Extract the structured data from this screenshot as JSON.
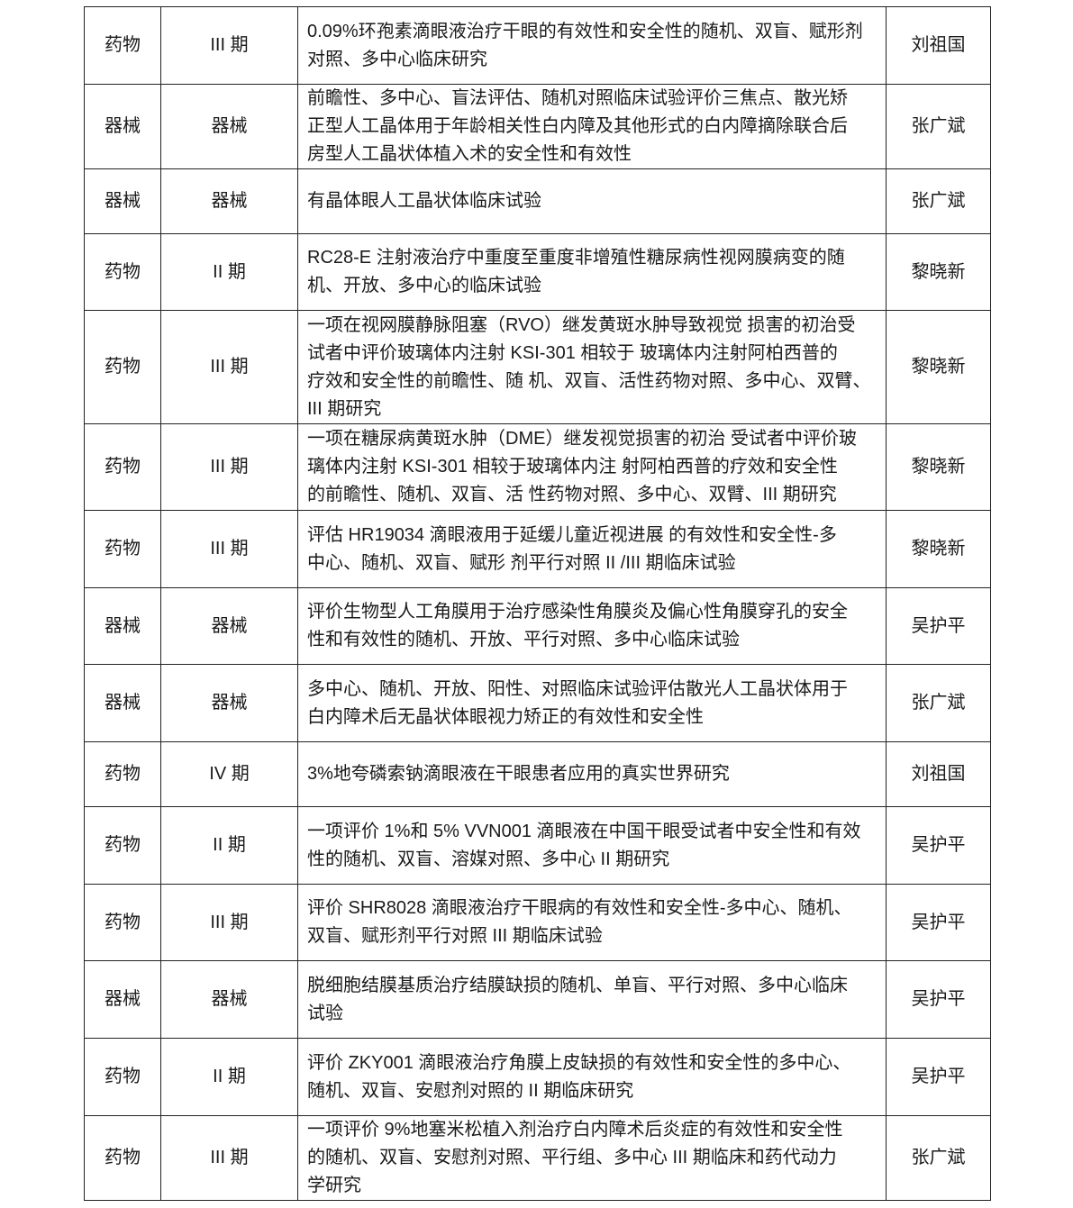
{
  "rows": [
    {
      "type": "药物",
      "phase": "III 期",
      "title": [
        "0.09%环孢素滴眼液治疗干眼的有效性和安全性的随机、双盲、赋形剂",
        "对照、多中心临床研究"
      ],
      "pi": "刘祖国"
    },
    {
      "type": "器械",
      "phase": "器械",
      "title": [
        "前瞻性、多中心、盲法评估、随机对照临床试验评价三焦点、散光矫",
        "正型人工晶体用于年龄相关性白内障及其他形式的白内障摘除联合后",
        "房型人工晶状体植入术的安全性和有效性"
      ],
      "pi": "张广斌"
    },
    {
      "type": "器械",
      "phase": "器械",
      "title": [
        "有晶体眼人工晶状体临床试验"
      ],
      "pi": "张广斌"
    },
    {
      "type": "药物",
      "phase": "II 期",
      "title": [
        "RC28-E 注射液治疗中重度至重度非增殖性糖尿病性视网膜病变的随",
        "机、开放、多中心的临床试验"
      ],
      "pi": "黎晓新"
    },
    {
      "type": "药物",
      "phase": "III 期",
      "title": [
        "一项在视网膜静脉阻塞（RVO）继发黄斑水肿导致视觉 损害的初治受",
        "试者中评价玻璃体内注射 KSI-301 相较于 玻璃体内注射阿柏西普的",
        "疗效和安全性的前瞻性、随 机、双盲、活性药物对照、多中心、双臂、",
        "III 期研究"
      ],
      "pi": "黎晓新"
    },
    {
      "type": "药物",
      "phase": "III 期",
      "title": [
        "一项在糖尿病黄斑水肿（DME）继发视觉损害的初治 受试者中评价玻",
        "璃体内注射 KSI-301 相较于玻璃体内注 射阿柏西普的疗效和安全性",
        "的前瞻性、随机、双盲、活 性药物对照、多中心、双臂、III 期研究"
      ],
      "pi": "黎晓新"
    },
    {
      "type": "药物",
      "phase": "III 期",
      "title": [
        "评估 HR19034 滴眼液用于延缓儿童近视进展 的有效性和安全性-多",
        "中心、随机、双盲、赋形 剂平行对照 II /III 期临床试验"
      ],
      "pi": "黎晓新"
    },
    {
      "type": "器械",
      "phase": "器械",
      "title": [
        "评价生物型人工角膜用于治疗感染性角膜炎及偏心性角膜穿孔的安全",
        "性和有效性的随机、开放、平行对照、多中心临床试验"
      ],
      "pi": "吴护平"
    },
    {
      "type": "器械",
      "phase": "器械",
      "title": [
        "多中心、随机、开放、阳性、对照临床试验评估散光人工晶状体用于",
        "白内障术后无晶状体眼视力矫正的有效性和安全性"
      ],
      "pi": "张广斌"
    },
    {
      "type": "药物",
      "phase": "IV 期",
      "title": [
        "3%地夸磷索钠滴眼液在干眼患者应用的真实世界研究"
      ],
      "pi": "刘祖国"
    },
    {
      "type": "药物",
      "phase": "II 期",
      "title": [
        "一项评价 1%和 5% VVN001 滴眼液在中国干眼受试者中安全性和有效",
        "性的随机、双盲、溶媒对照、多中心 II 期研究"
      ],
      "pi": "吴护平"
    },
    {
      "type": "药物",
      "phase": "III 期",
      "title": [
        "评价 SHR8028 滴眼液治疗干眼病的有效性和安全性-多中心、随机、",
        "双盲、赋形剂平行对照 III 期临床试验"
      ],
      "pi": "吴护平"
    },
    {
      "type": "器械",
      "phase": "器械",
      "title": [
        "脱细胞结膜基质治疗结膜缺损的随机、单盲、平行对照、多中心临床",
        "试验"
      ],
      "pi": "吴护平"
    },
    {
      "type": "药物",
      "phase": "II 期",
      "title": [
        "评价 ZKY001 滴眼液治疗角膜上皮缺损的有效性和安全性的多中心、",
        "随机、双盲、安慰剂对照的 II 期临床研究"
      ],
      "pi": "吴护平"
    },
    {
      "type": "药物",
      "phase": "III 期",
      "title": [
        "一项评价 9%地塞米松植入剂治疗白内障术后炎症的有效性和安全性",
        "的随机、双盲、安慰剂对照、平行组、多中心 III 期临床和药代动力",
        "学研究"
      ],
      "pi": "张广斌"
    }
  ]
}
